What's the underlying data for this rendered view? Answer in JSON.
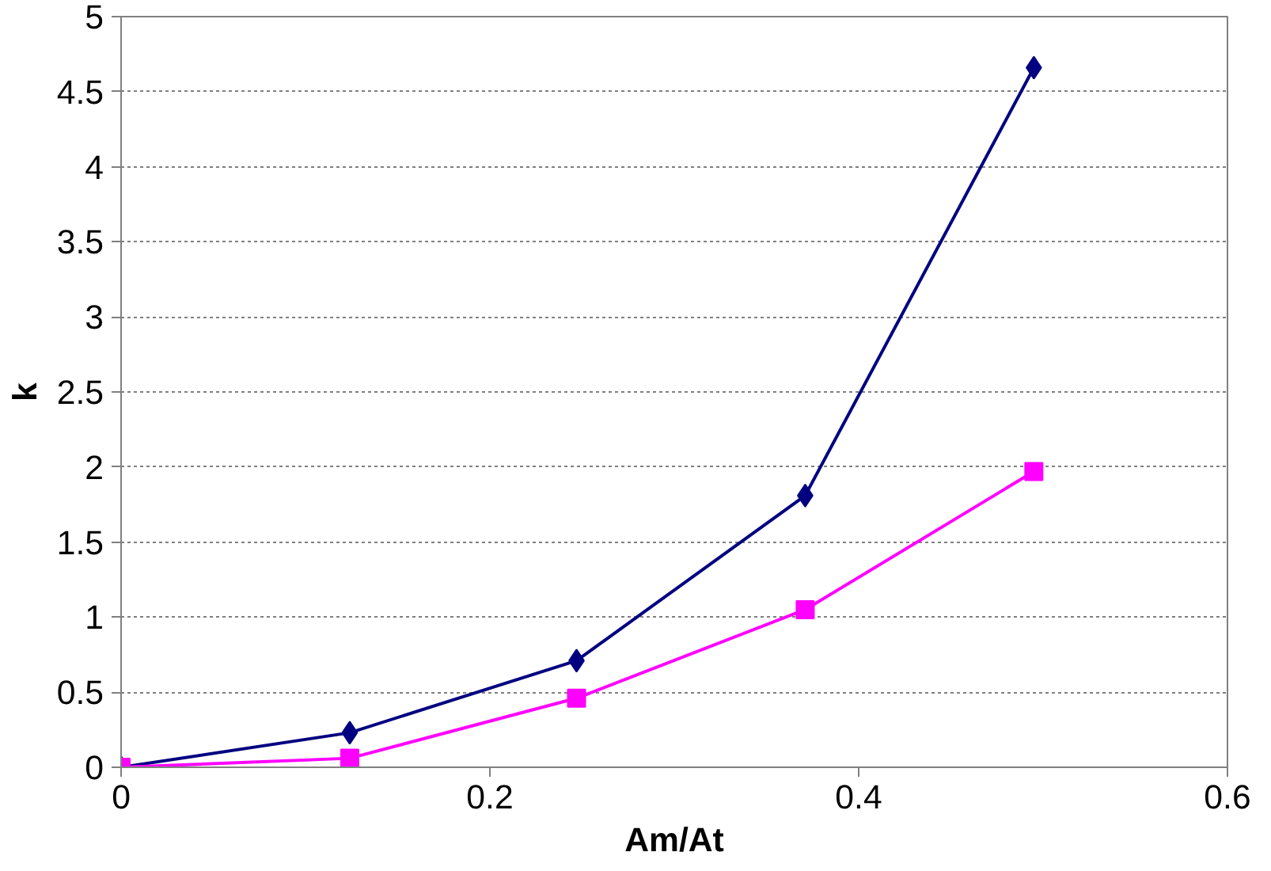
{
  "chart_data": {
    "type": "line",
    "xlabel": "Am/At",
    "ylabel": "k",
    "x": [
      0,
      0.124,
      0.247,
      0.371,
      0.495
    ],
    "series": [
      {
        "color": "#000080",
        "values": [
          0,
          0.23,
          0.71,
          1.81,
          4.66
        ],
        "marker": "diamond"
      },
      {
        "color": "#ff00ff",
        "values": [
          0,
          0.06,
          0.46,
          1.05,
          1.97
        ],
        "marker": "square"
      }
    ],
    "xlim": [
      0,
      0.6
    ],
    "xticks": [
      0,
      0.2,
      0.4,
      0.6
    ],
    "ylim": [
      0,
      5
    ],
    "yticks": [
      0,
      0.5,
      1,
      1.5,
      2,
      2.5,
      3,
      3.5,
      4,
      4.5,
      5
    ],
    "grid": "y",
    "line_style": "solid"
  }
}
